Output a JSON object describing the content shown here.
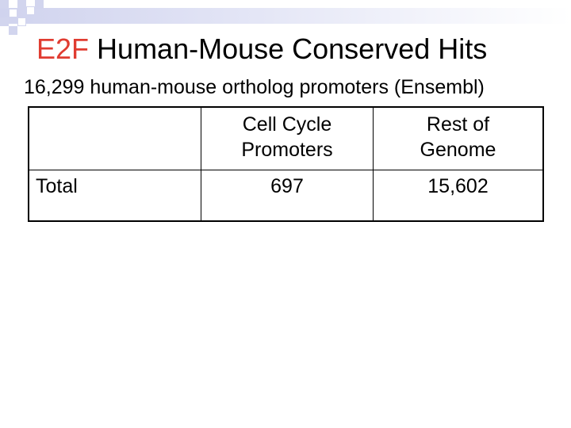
{
  "slide": {
    "title_accent": "E2F",
    "title_rest": "Human-Mouse Conserved Hits",
    "subtitle": "16,299 human-mouse ortholog promoters (Ensembl)"
  },
  "table": {
    "header": {
      "col0": "",
      "col1_line1": "Cell Cycle",
      "col1_line2": "Promoters",
      "col2_line1": "Rest of",
      "col2_line2": "Genome"
    },
    "rows": [
      {
        "label": "Total",
        "cell_cycle": "697",
        "rest": "15,602"
      }
    ]
  },
  "colors": {
    "accent": "#e03c31",
    "decoration": "#d2d5ee"
  }
}
